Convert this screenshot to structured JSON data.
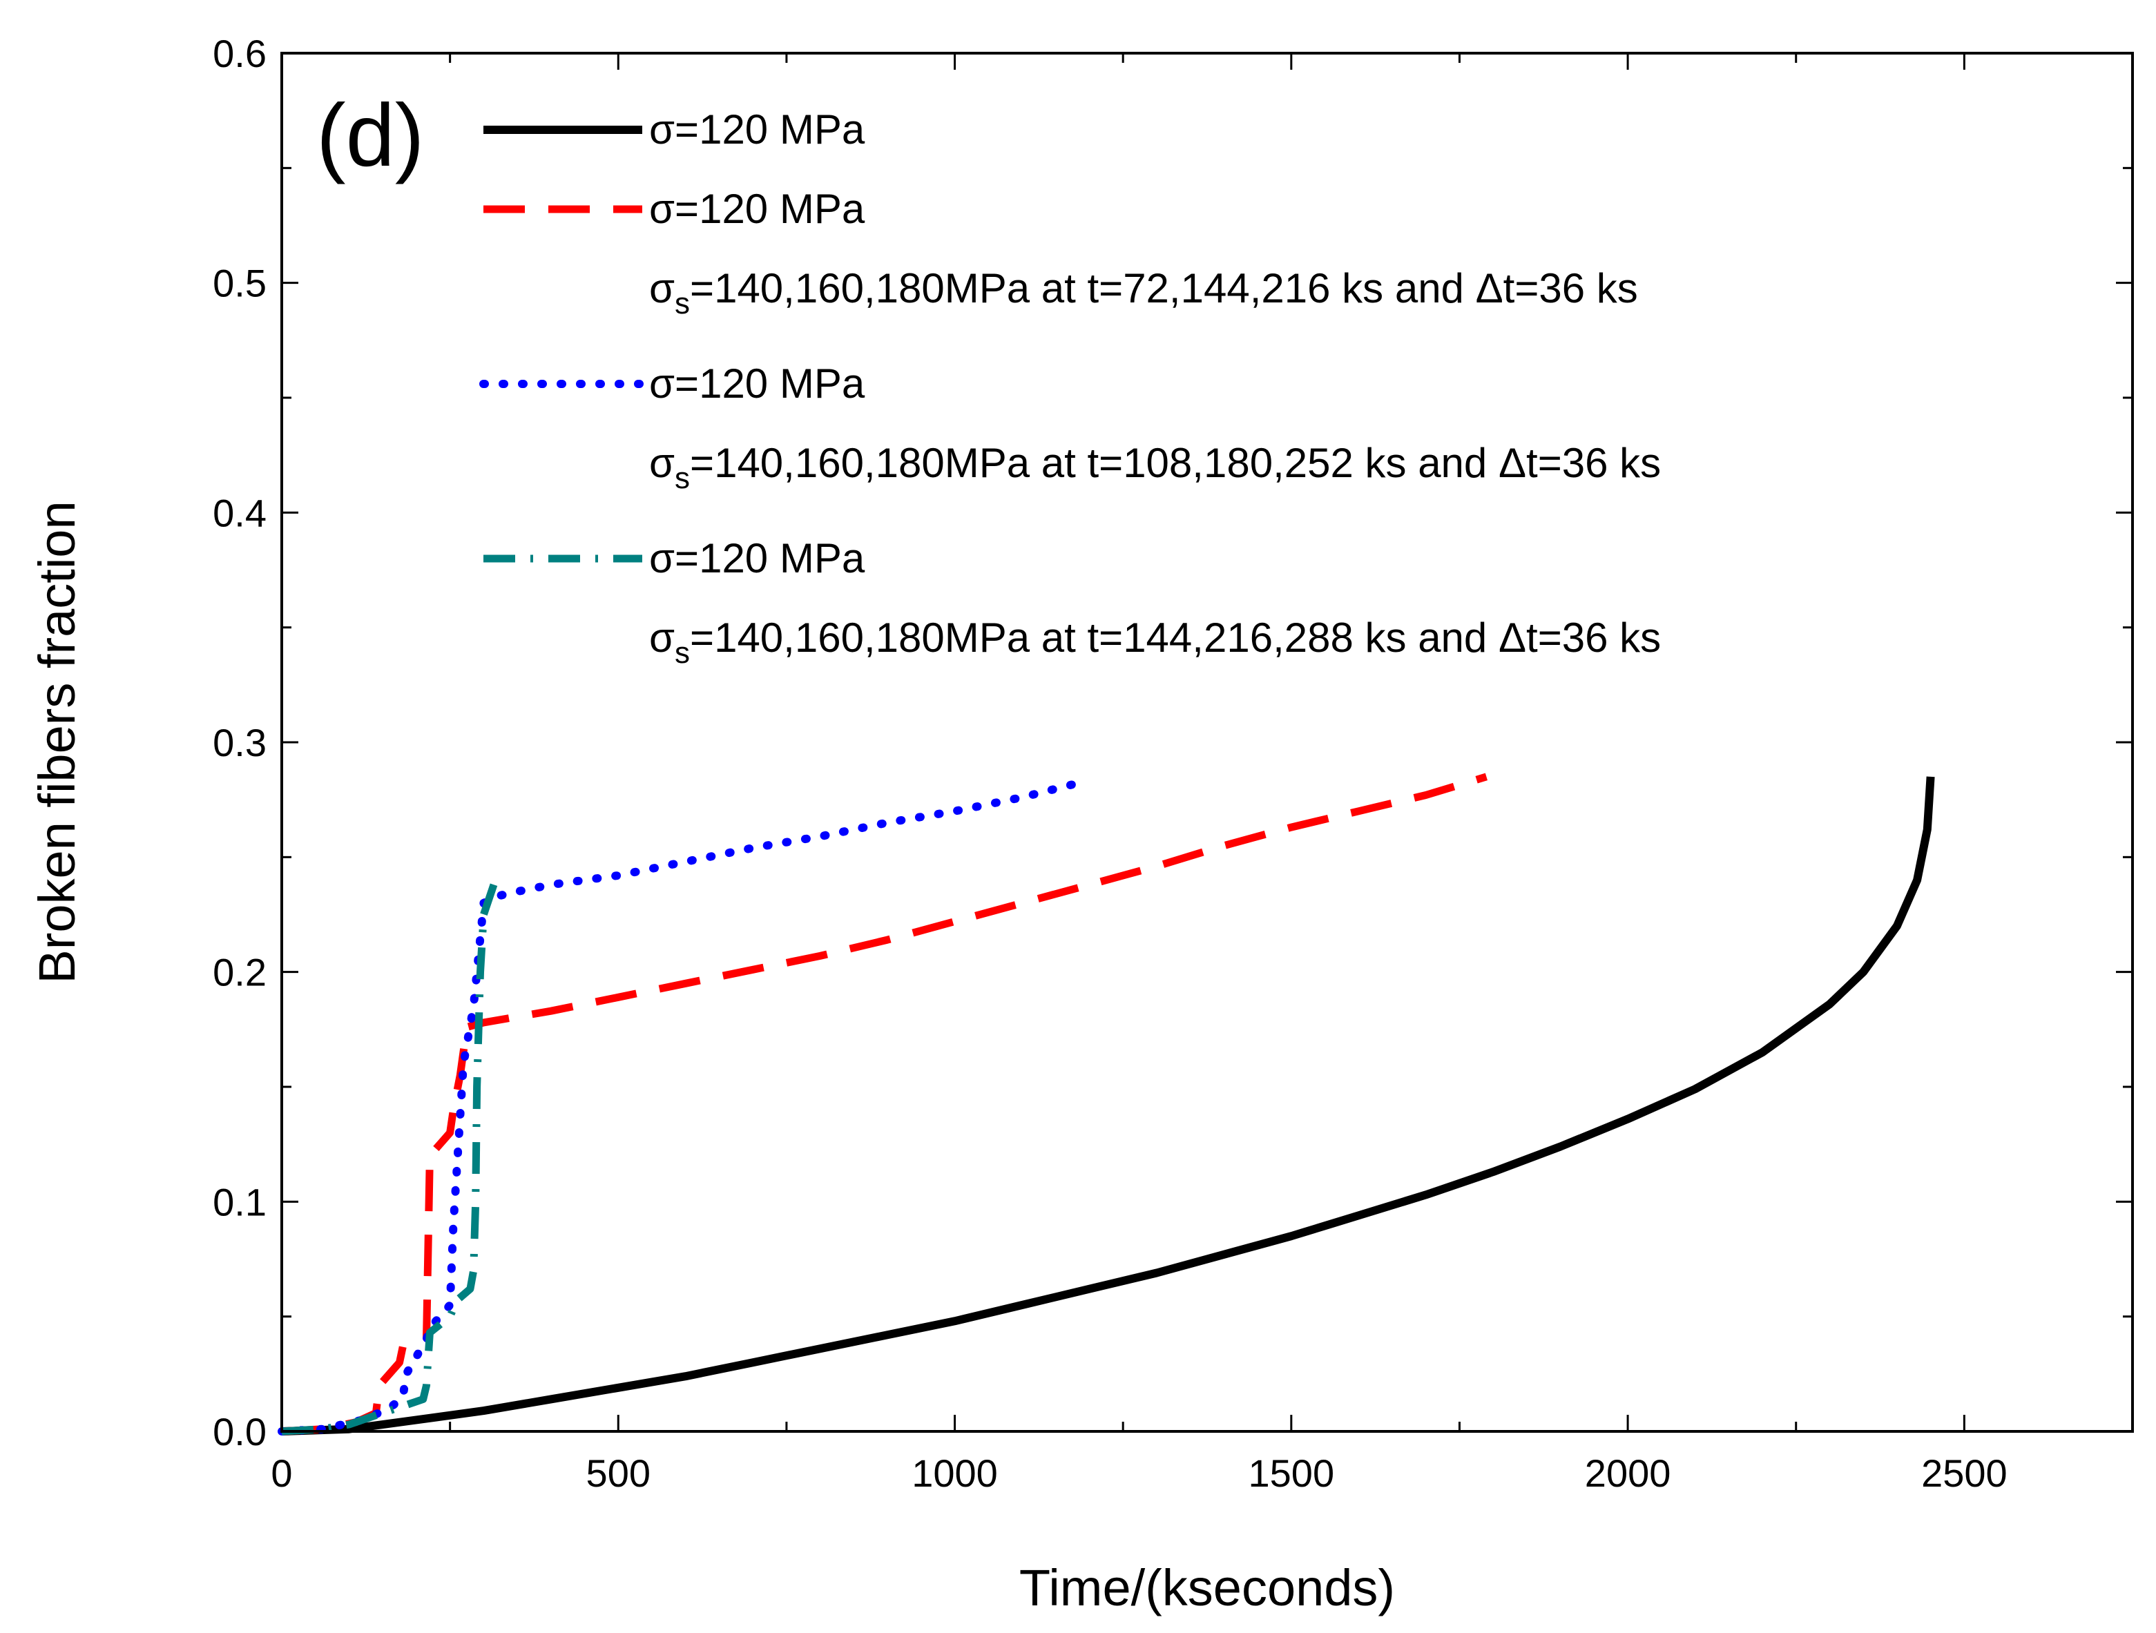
{
  "chart_data": {
    "type": "line",
    "panel_label": "(d)",
    "xlabel": "Time/(kseconds)",
    "ylabel": "Broken fibers fraction",
    "xlim": [
      0,
      2750
    ],
    "ylim": [
      0,
      0.6
    ],
    "xticks": [
      0,
      500,
      1000,
      1500,
      2000,
      2500
    ],
    "xtick_labels": [
      "0",
      "500",
      "1000",
      "1500",
      "2000",
      "2500"
    ],
    "yticks": [
      0.0,
      0.1,
      0.2,
      0.3,
      0.4,
      0.5,
      0.6
    ],
    "ytick_labels": [
      "0.0",
      "0.1",
      "0.2",
      "0.3",
      "0.4",
      "0.5",
      "0.6"
    ],
    "grid": false,
    "legend_position": "top-left",
    "series": [
      {
        "legend_main": "σ=120 MPa",
        "legend_sub": null,
        "color": "#000000",
        "style": "solid",
        "x": [
          0,
          100,
          200,
          300,
          400,
          500,
          600,
          700,
          800,
          900,
          1000,
          1100,
          1200,
          1300,
          1400,
          1500,
          1600,
          1700,
          1800,
          1900,
          2000,
          2100,
          2200,
          2300,
          2350,
          2400,
          2430,
          2445,
          2450
        ],
        "y": [
          0,
          0.001,
          0.005,
          0.009,
          0.014,
          0.019,
          0.024,
          0.03,
          0.036,
          0.042,
          0.048,
          0.055,
          0.062,
          0.069,
          0.077,
          0.085,
          0.094,
          0.103,
          0.113,
          0.124,
          0.136,
          0.149,
          0.165,
          0.186,
          0.2,
          0.22,
          0.24,
          0.262,
          0.285
        ]
      },
      {
        "legend_main": "σ=120 MPa",
        "legend_sub": {
          "prefix": "σ",
          "subscript": "s",
          "rest": "=140,160,180MPa at t=72,144,216 ks and Δt=36 ks"
        },
        "color": "#ff0000",
        "style": "dashed",
        "x": [
          0,
          60,
          110,
          140,
          145,
          175,
          180,
          215,
          220,
          250,
          255,
          265,
          275,
          300,
          400,
          500,
          600,
          700,
          800,
          900,
          1000,
          1100,
          1200,
          1300,
          1400,
          1500,
          1600,
          1700,
          1790
        ],
        "y": [
          0,
          0.001,
          0.004,
          0.008,
          0.02,
          0.03,
          0.037,
          0.04,
          0.12,
          0.13,
          0.14,
          0.155,
          0.176,
          0.178,
          0.183,
          0.189,
          0.195,
          0.201,
          0.207,
          0.214,
          0.222,
          0.23,
          0.238,
          0.246,
          0.255,
          0.263,
          0.27,
          0.277,
          0.285
        ]
      },
      {
        "legend_main": "σ=120 MPa",
        "legend_sub": {
          "prefix": "σ",
          "subscript": "s",
          "rest": "=140,160,180MPa at t=108,180,252 ks and Δt=36 ks"
        },
        "color": "#0000ff",
        "style": "dotted",
        "x": [
          0,
          60,
          120,
          160,
          180,
          185,
          215,
          220,
          250,
          255,
          270,
          285,
          290,
          300,
          320,
          350,
          400,
          500,
          600,
          700,
          800,
          900,
          1000,
          1100,
          1180
        ],
        "y": [
          0,
          0.001,
          0.005,
          0.01,
          0.015,
          0.025,
          0.04,
          0.045,
          0.055,
          0.09,
          0.16,
          0.185,
          0.2,
          0.23,
          0.233,
          0.235,
          0.238,
          0.242,
          0.248,
          0.254,
          0.259,
          0.265,
          0.27,
          0.276,
          0.282
        ]
      },
      {
        "legend_main": "σ=120 MPa",
        "legend_sub": {
          "prefix": "σ",
          "subscript": "s",
          "rest": "=140,160,180MPa at t=144,216,288 ks and Δt=36 ks"
        },
        "color": "#008080",
        "style": "dashdot",
        "x": [
          0,
          60,
          100,
          140,
          170,
          200,
          210,
          215,
          220,
          250,
          260,
          280,
          285,
          288,
          290,
          295,
          300,
          315
        ],
        "y": [
          0,
          0.001,
          0.003,
          0.007,
          0.01,
          0.013,
          0.014,
          0.02,
          0.043,
          0.05,
          0.057,
          0.062,
          0.07,
          0.1,
          0.15,
          0.2,
          0.225,
          0.238
        ]
      }
    ]
  }
}
